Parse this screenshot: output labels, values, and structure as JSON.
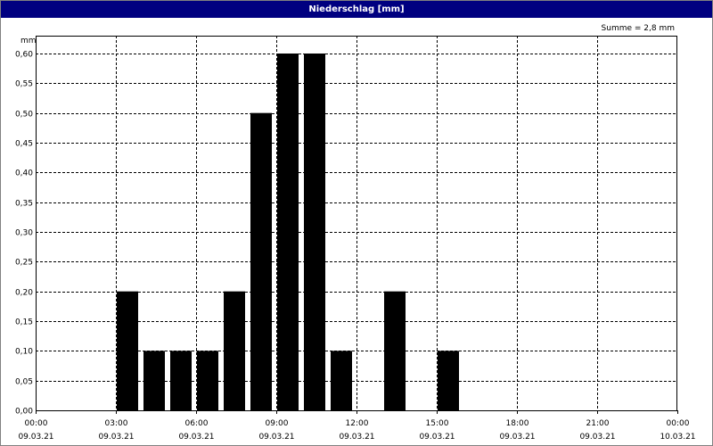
{
  "window": {
    "title": "Niederschlag [mm]"
  },
  "summary": {
    "text": "Summe = 2,8 mm"
  },
  "chart_data": {
    "type": "bar",
    "title": "Niederschlag [mm]",
    "ylabel": "mm",
    "xlabel": "",
    "ylim": [
      0,
      0.63
    ],
    "xlim": [
      "09.03.21 00:00",
      "10.03.21 00:00"
    ],
    "grid": true,
    "y_ticks": [
      "0,00",
      "0,05",
      "0,10",
      "0,15",
      "0,20",
      "0,25",
      "0,30",
      "0,35",
      "0,40",
      "0,45",
      "0,50",
      "0,55",
      "0,60"
    ],
    "y_tick_values": [
      0,
      0.05,
      0.1,
      0.15,
      0.2,
      0.25,
      0.3,
      0.35,
      0.4,
      0.45,
      0.5,
      0.55,
      0.6
    ],
    "x_ticks": [
      {
        "time": "00:00",
        "date": "09.03.21"
      },
      {
        "time": "03:00",
        "date": "09.03.21"
      },
      {
        "time": "06:00",
        "date": "09.03.21"
      },
      {
        "time": "09:00",
        "date": "09.03.21"
      },
      {
        "time": "12:00",
        "date": "09.03.21"
      },
      {
        "time": "15:00",
        "date": "09.03.21"
      },
      {
        "time": "18:00",
        "date": "09.03.21"
      },
      {
        "time": "21:00",
        "date": "09.03.21"
      },
      {
        "time": "00:00",
        "date": "10.03.21"
      }
    ],
    "bars": [
      {
        "time": "09.03.21 03:00",
        "value": 0.2
      },
      {
        "time": "09.03.21 04:00",
        "value": 0.1
      },
      {
        "time": "09.03.21 05:00",
        "value": 0.1
      },
      {
        "time": "09.03.21 06:00",
        "value": 0.1
      },
      {
        "time": "09.03.21 07:00",
        "value": 0.2
      },
      {
        "time": "09.03.21 08:00",
        "value": 0.5
      },
      {
        "time": "09.03.21 09:00",
        "value": 0.6
      },
      {
        "time": "09.03.21 10:00",
        "value": 0.6
      },
      {
        "time": "09.03.21 11:00",
        "value": 0.1
      },
      {
        "time": "09.03.21 13:00",
        "value": 0.2
      },
      {
        "time": "09.03.21 15:00",
        "value": 0.1
      }
    ],
    "bar_color": "#000000",
    "grid_color": "#000000"
  }
}
